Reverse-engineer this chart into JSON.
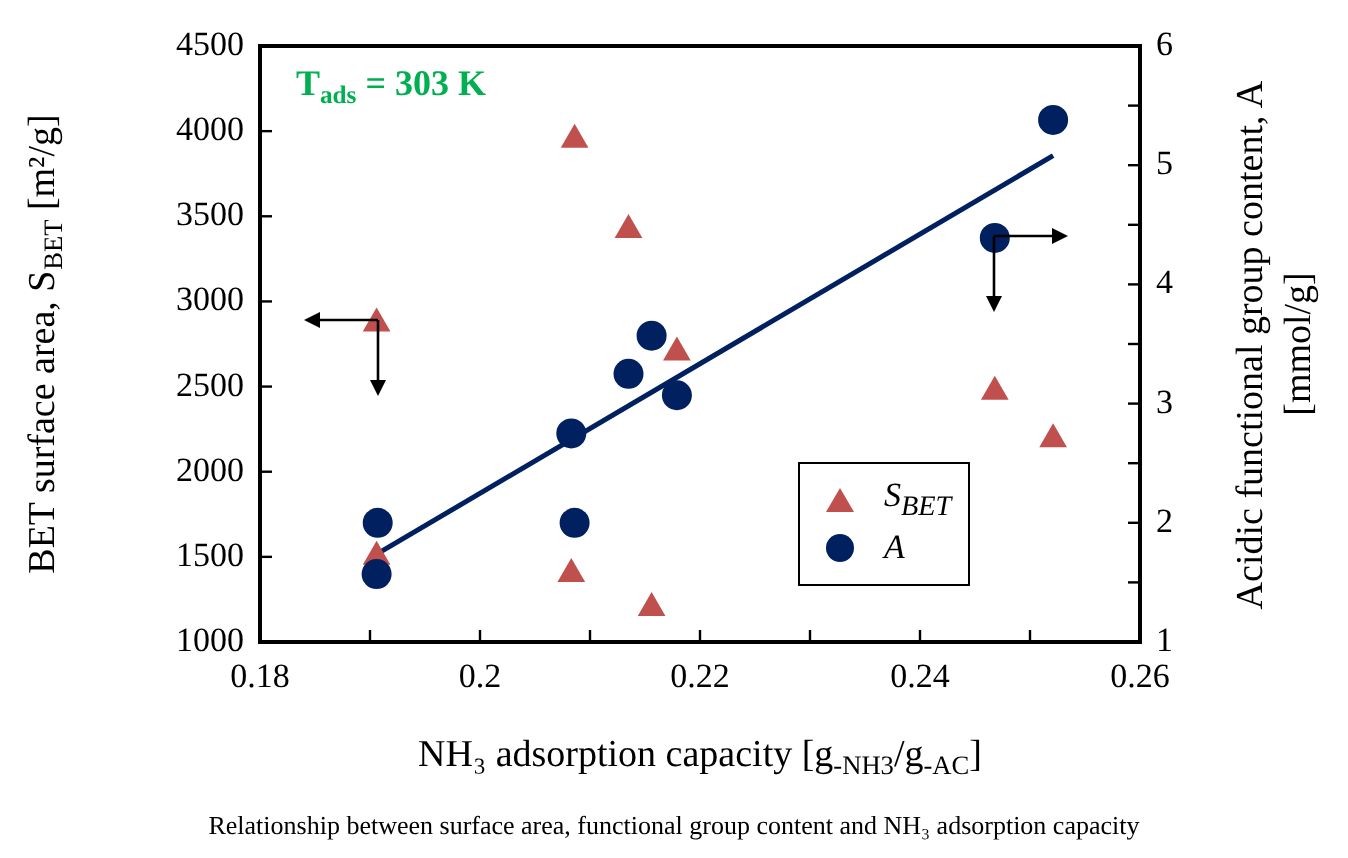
{
  "chart_data": {
    "type": "scatter",
    "xlabel": "NH₃ adsorption capacity [g$_{-NH3}$/g$_{-AC}$]",
    "ylabel": "BET surface area, S$_{BET}$ [m²/g]",
    "y2label": "Acidic functional group content, A [mmol/g]",
    "annotations": [
      "T$_{ads}$ = 303 K",
      "Relationship between surface area, functional group content and NH₃ adsorption capacity"
    ],
    "xlim": [
      0.18,
      0.26
    ],
    "xticks": [
      0.18,
      {
        "value": 0.19,
        "label": null
      },
      0.2,
      {
        "value": 0.21,
        "label": null
      },
      0.22,
      {
        "value": 0.23,
        "label": null
      },
      0.24,
      {
        "value": 0.25,
        "label": null
      },
      0.26
    ],
    "ylim": [
      1000,
      4500
    ],
    "yticks": [
      1000,
      1500,
      2000,
      2500,
      3000,
      3500,
      4000,
      4500
    ],
    "y2lim": [
      1,
      6
    ],
    "y2ticks": [
      1,
      {
        "value": 1.5,
        "label": null
      },
      2,
      {
        "value": 2.5,
        "label": null
      },
      3,
      {
        "value": 3.5,
        "label": null
      },
      4,
      {
        "value": 4.5,
        "label": null
      },
      5,
      {
        "value": 5.5,
        "label": null
      },
      6
    ],
    "grid": false,
    "legend": "bottom right",
    "series": [
      {
        "name": "S$_{BET}$",
        "marker": "triangle",
        "color": "#c0504d",
        "x": [
          0.1906,
          0.2086,
          0.2135,
          0.2179,
          0.2468,
          0.2521,
          0.2083,
          0.2156,
          0.1906
        ],
        "values": [
          2870,
          3950,
          3420,
          2700,
          2470,
          2190,
          1400,
          1200,
          1500
        ]
      },
      {
        "name": "A",
        "marker": "circle",
        "color": "#002060",
        "axis": "y2",
        "x": [
          0.1907,
          0.1906,
          0.2083,
          0.2086,
          0.2135,
          0.2156,
          0.2179,
          0.2468,
          0.2521
        ],
        "values": [
          2.0,
          1.57,
          2.75,
          2.0,
          3.25,
          3.57,
          3.07,
          4.39,
          5.38
        ]
      },
      {
        "type": "line",
        "marker": "none",
        "color": "#002060",
        "axis": "y2",
        "x": [
          0.1903,
          0.2521
        ],
        "values": [
          1.72,
          5.08
        ]
      }
    ]
  }
}
